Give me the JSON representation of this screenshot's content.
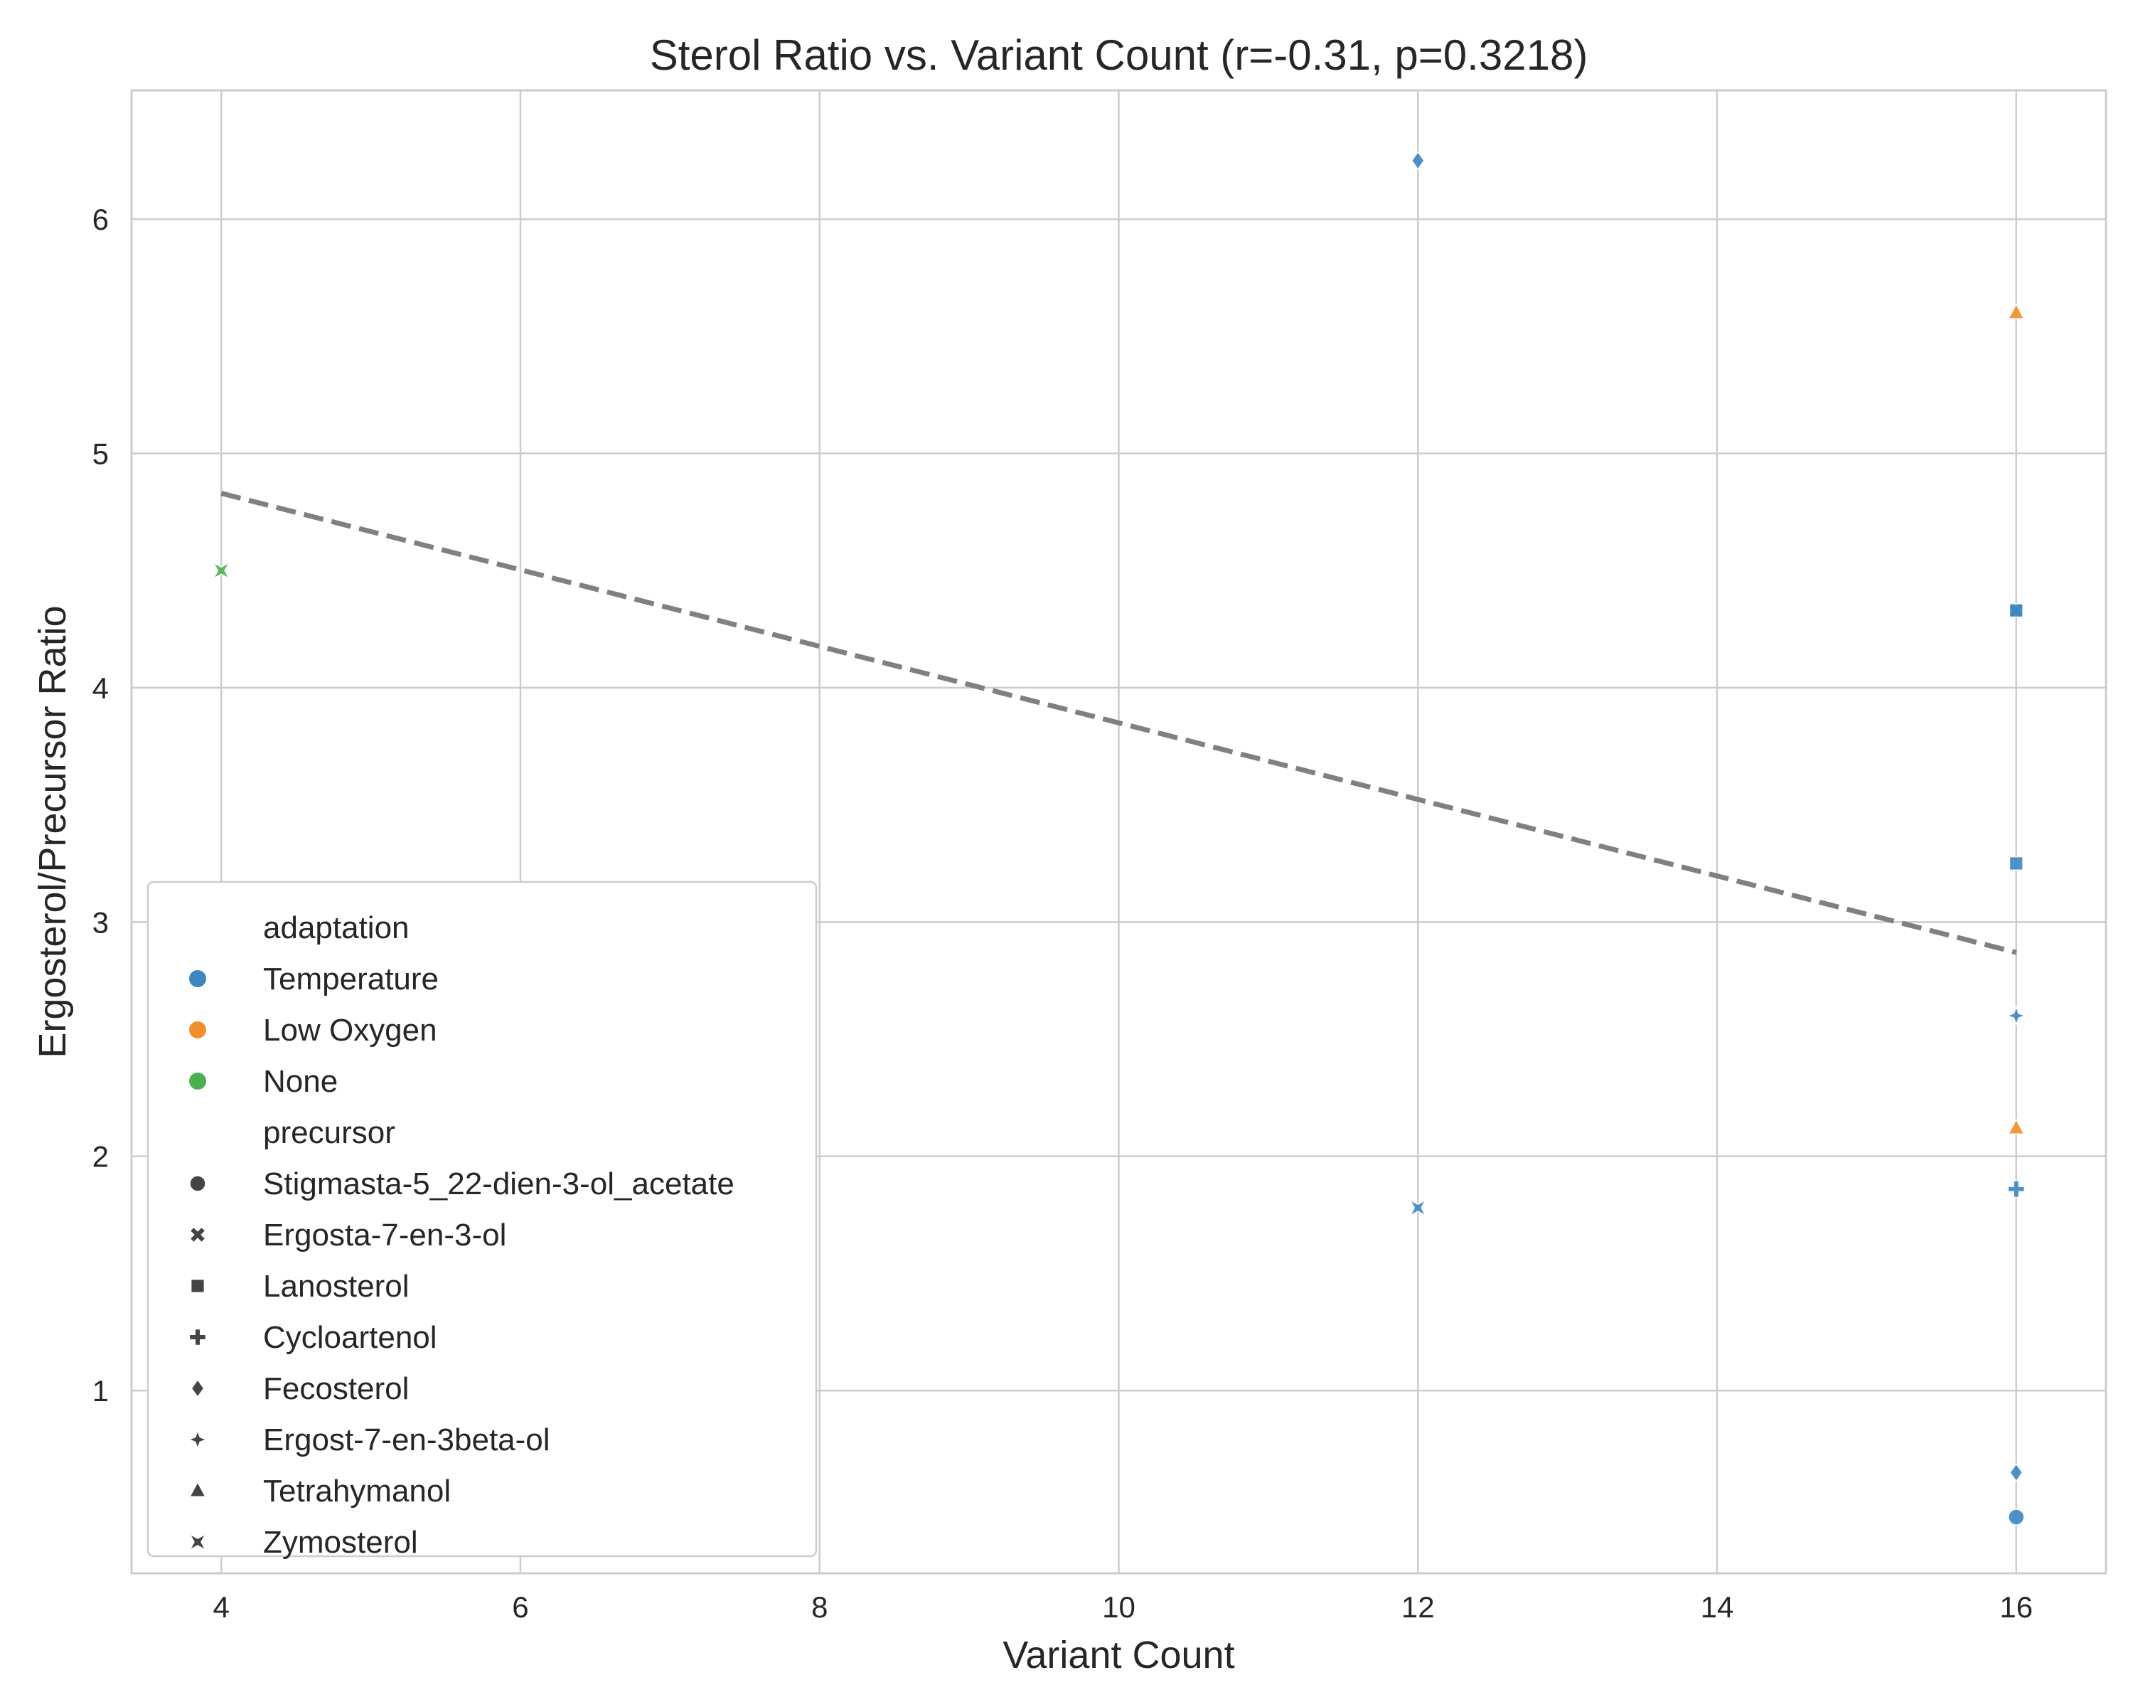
{
  "chart_data": {
    "type": "scatter",
    "title": "Sterol Ratio vs. Variant Count (r=-0.31, p=0.3218)",
    "xlabel": "Variant Count",
    "ylabel": "Ergosterol/Precursor Ratio",
    "xlim": [
      3.4,
      16.6
    ],
    "ylim": [
      0.22,
      6.55
    ],
    "xticks": [
      4,
      6,
      8,
      10,
      12,
      14,
      16
    ],
    "yticks": [
      1,
      2,
      3,
      4,
      5,
      6
    ],
    "grid": true,
    "legend_position": "lower-left",
    "hue": {
      "title": "adaptation",
      "entries": [
        {
          "label": "Temperature",
          "color": "#3b87c2"
        },
        {
          "label": "Low Oxygen",
          "color": "#f28e2b"
        },
        {
          "label": "None",
          "color": "#4caf50"
        }
      ]
    },
    "style": {
      "title": "precursor",
      "entries": [
        {
          "label": "Stigmasta-5_22-dien-3-ol_acetate",
          "marker": "circle"
        },
        {
          "label": "Ergosta-7-en-3-ol",
          "marker": "x"
        },
        {
          "label": "Lanosterol",
          "marker": "square"
        },
        {
          "label": "Cycloartenol",
          "marker": "plus"
        },
        {
          "label": "Fecosterol",
          "marker": "diamond"
        },
        {
          "label": "Ergost-7-en-3beta-ol",
          "marker": "star4"
        },
        {
          "label": "Tetrahymanol",
          "marker": "triangle"
        },
        {
          "label": "Zymosterol",
          "marker": "pinwheel"
        }
      ]
    },
    "points": [
      {
        "x": 4,
        "y": 4.5,
        "adaptation": "None",
        "precursor": "Zymosterol"
      },
      {
        "x": 12,
        "y": 6.25,
        "adaptation": "Temperature",
        "precursor": "Fecosterol"
      },
      {
        "x": 12,
        "y": 1.78,
        "adaptation": "Temperature",
        "precursor": "Zymosterol"
      },
      {
        "x": 16,
        "y": 5.6,
        "adaptation": "Low Oxygen",
        "precursor": "Tetrahymanol"
      },
      {
        "x": 16,
        "y": 4.33,
        "adaptation": "Temperature",
        "precursor": "Ergosta-7-en-3-ol"
      },
      {
        "x": 16,
        "y": 4.33,
        "adaptation": "Temperature",
        "precursor": "Lanosterol"
      },
      {
        "x": 16,
        "y": 3.25,
        "adaptation": "Temperature",
        "precursor": "Lanosterol"
      },
      {
        "x": 16,
        "y": 2.6,
        "adaptation": "Temperature",
        "precursor": "Ergost-7-en-3beta-ol"
      },
      {
        "x": 16,
        "y": 2.12,
        "adaptation": "Low Oxygen",
        "precursor": "Tetrahymanol"
      },
      {
        "x": 16,
        "y": 1.86,
        "adaptation": "Temperature",
        "precursor": "Cycloartenol"
      },
      {
        "x": 16,
        "y": 0.65,
        "adaptation": "Temperature",
        "precursor": "Fecosterol"
      },
      {
        "x": 16,
        "y": 0.46,
        "adaptation": "Temperature",
        "precursor": "Stigmasta-5_22-dien-3-ol_acetate"
      }
    ],
    "trendline": {
      "x": [
        4,
        16
      ],
      "y": [
        4.83,
        2.87
      ],
      "style": "dashed",
      "color": "#808080"
    }
  }
}
